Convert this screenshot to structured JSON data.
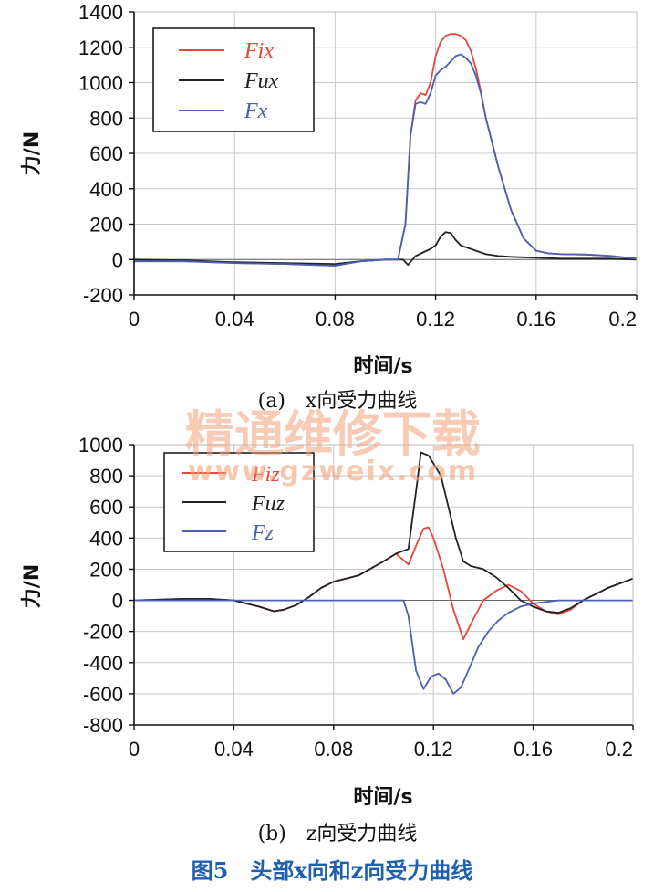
{
  "figure_caption": "图5　头部x向和z向受力曲线",
  "watermark": {
    "line1": "精通维修下载",
    "line2": "www.gzweix.com"
  },
  "chart_data": [
    {
      "type": "line",
      "caption": "(a)　x向受力曲线",
      "xlabel": "时间/s",
      "ylabel": "力/N",
      "xlim": [
        0,
        0.2
      ],
      "ylim": [
        -200,
        1400
      ],
      "xticks": [
        0,
        0.04,
        0.08,
        0.12,
        0.16,
        0.2
      ],
      "xtick_labels": [
        "0",
        "0.04",
        "0.08",
        "0.12",
        "0.16",
        "0.2"
      ],
      "yticks": [
        -200,
        0,
        200,
        400,
        600,
        800,
        1000,
        1200,
        1400
      ],
      "ytick_labels": [
        "-200",
        "0",
        "200",
        "400",
        "600",
        "800",
        "1000",
        "1200",
        "1400"
      ],
      "grid": true,
      "legend_position": "top-left",
      "zero_line": true,
      "series": [
        {
          "name": "Fix",
          "color": "#e8463c",
          "x": [
            0,
            0.02,
            0.04,
            0.06,
            0.08,
            0.09,
            0.1,
            0.105,
            0.108,
            0.11,
            0.112,
            0.114,
            0.116,
            0.118,
            0.12,
            0.122,
            0.124,
            0.126,
            0.128,
            0.13,
            0.132,
            0.134,
            0.136,
            0.138,
            0.14,
            0.145,
            0.15,
            0.155,
            0.16,
            0.165,
            0.17,
            0.18,
            0.19,
            0.2
          ],
          "y": [
            -10,
            -10,
            -20,
            -25,
            -35,
            -10,
            0,
            0,
            200,
            700,
            900,
            940,
            930,
            1000,
            1150,
            1230,
            1265,
            1275,
            1275,
            1265,
            1240,
            1180,
            1080,
            950,
            800,
            520,
            280,
            120,
            50,
            35,
            30,
            28,
            20,
            5
          ]
        },
        {
          "name": "Fux",
          "color": "#222222",
          "x": [
            0,
            0.02,
            0.04,
            0.06,
            0.08,
            0.09,
            0.1,
            0.105,
            0.107,
            0.109,
            0.112,
            0.115,
            0.118,
            0.12,
            0.122,
            0.124,
            0.126,
            0.128,
            0.13,
            0.134,
            0.138,
            0.14,
            0.145,
            0.15,
            0.16,
            0.17,
            0.18,
            0.19,
            0.2
          ],
          "y": [
            0,
            -5,
            -15,
            -20,
            -25,
            -10,
            0,
            0,
            0,
            -30,
            20,
            40,
            60,
            80,
            130,
            155,
            150,
            110,
            80,
            60,
            40,
            30,
            20,
            15,
            10,
            5,
            5,
            5,
            0
          ]
        },
        {
          "name": "Fx",
          "color": "#4a5fb5",
          "x": [
            0,
            0.02,
            0.04,
            0.06,
            0.08,
            0.09,
            0.1,
            0.105,
            0.108,
            0.11,
            0.112,
            0.114,
            0.116,
            0.118,
            0.12,
            0.122,
            0.124,
            0.126,
            0.128,
            0.13,
            0.132,
            0.134,
            0.136,
            0.138,
            0.14,
            0.145,
            0.15,
            0.155,
            0.16,
            0.165,
            0.17,
            0.18,
            0.19,
            0.2
          ],
          "y": [
            -10,
            -10,
            -20,
            -25,
            -35,
            -10,
            0,
            0,
            200,
            700,
            880,
            890,
            880,
            940,
            1040,
            1070,
            1090,
            1120,
            1150,
            1160,
            1140,
            1110,
            1040,
            940,
            800,
            520,
            280,
            120,
            50,
            35,
            30,
            28,
            20,
            5
          ]
        }
      ]
    },
    {
      "type": "line",
      "caption": "(b)　z向受力曲线",
      "xlabel": "时间/s",
      "ylabel": "力/N",
      "xlim": [
        0,
        0.2
      ],
      "ylim": [
        -800,
        1000
      ],
      "xticks": [
        0,
        0.04,
        0.08,
        0.12,
        0.16,
        0.2
      ],
      "xtick_labels": [
        "0",
        "0.04",
        "0.08",
        "0.12",
        "0.16",
        "0.2"
      ],
      "yticks": [
        -800,
        -600,
        -400,
        -200,
        0,
        200,
        400,
        600,
        800,
        1000
      ],
      "ytick_labels": [
        "-800",
        "-600",
        "-400",
        "-200",
        "0",
        "200",
        "400",
        "600",
        "800",
        "1000"
      ],
      "grid": true,
      "legend_position": "top-left",
      "zero_line": true,
      "series": [
        {
          "name": "Fiz",
          "color": "#e8463c",
          "x": [
            0,
            0.02,
            0.03,
            0.04,
            0.05,
            0.056,
            0.06,
            0.065,
            0.07,
            0.075,
            0.08,
            0.09,
            0.1,
            0.105,
            0.11,
            0.113,
            0.116,
            0.118,
            0.12,
            0.124,
            0.128,
            0.132,
            0.136,
            0.14,
            0.145,
            0.15,
            0.155,
            0.16,
            0.165,
            0.17,
            0.175,
            0.18,
            0.19,
            0.2
          ],
          "y": [
            0,
            10,
            10,
            0,
            -40,
            -70,
            -60,
            -30,
            20,
            80,
            120,
            160,
            250,
            300,
            230,
            350,
            460,
            470,
            400,
            200,
            -60,
            -250,
            -120,
            0,
            60,
            100,
            60,
            -20,
            -70,
            -90,
            -60,
            0,
            80,
            140
          ]
        },
        {
          "name": "Fuz",
          "color": "#222222",
          "x": [
            0,
            0.02,
            0.03,
            0.04,
            0.05,
            0.056,
            0.06,
            0.065,
            0.07,
            0.075,
            0.08,
            0.09,
            0.1,
            0.105,
            0.11,
            0.113,
            0.115,
            0.118,
            0.12,
            0.123,
            0.126,
            0.129,
            0.132,
            0.135,
            0.14,
            0.145,
            0.15,
            0.155,
            0.16,
            0.165,
            0.17,
            0.175,
            0.18,
            0.19,
            0.2
          ],
          "y": [
            0,
            10,
            10,
            0,
            -40,
            -70,
            -60,
            -30,
            20,
            80,
            120,
            160,
            250,
            300,
            330,
            700,
            950,
            930,
            880,
            800,
            600,
            400,
            250,
            220,
            200,
            150,
            80,
            0,
            -40,
            -70,
            -80,
            -50,
            0,
            80,
            140
          ]
        },
        {
          "name": "Fz",
          "color": "#4a5fb5",
          "x": [
            0,
            0.04,
            0.08,
            0.1,
            0.108,
            0.11,
            0.113,
            0.116,
            0.119,
            0.122,
            0.125,
            0.128,
            0.131,
            0.134,
            0.138,
            0.142,
            0.146,
            0.15,
            0.155,
            0.16,
            0.165,
            0.17,
            0.18,
            0.2
          ],
          "y": [
            0,
            0,
            0,
            0,
            0,
            -100,
            -450,
            -570,
            -490,
            -470,
            -510,
            -600,
            -560,
            -450,
            -300,
            -200,
            -130,
            -80,
            -40,
            -20,
            -10,
            0,
            0,
            0
          ]
        }
      ]
    }
  ]
}
